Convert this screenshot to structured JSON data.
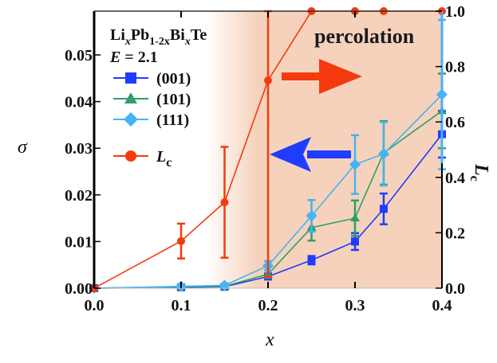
{
  "chart_data": {
    "type": "line",
    "title": "",
    "xlabel": "x",
    "ylabel_left": "σ",
    "ylabel_right": "L_c",
    "xlim": [
      0.0,
      0.4
    ],
    "ylim_left": [
      0.0,
      0.059
    ],
    "ylim_right": [
      0.0,
      1.0
    ],
    "x_ticks": [
      "0.0",
      "0.1",
      "0.2",
      "0.3",
      "0.4"
    ],
    "x_tick_values": [
      0.0,
      0.1,
      0.2,
      0.3,
      0.4
    ],
    "y_left_ticks": [
      "0.00",
      "0.01",
      "0.02",
      "0.03",
      "0.04",
      "0.05"
    ],
    "y_left_tick_values": [
      0.0,
      0.01,
      0.02,
      0.03,
      0.04,
      0.05
    ],
    "y_right_ticks": [
      "0.0",
      "0.2",
      "0.4",
      "0.6",
      "0.8",
      "1.0"
    ],
    "y_right_tick_values": [
      0.0,
      0.2,
      0.4,
      0.6,
      0.8,
      1.0
    ],
    "shaded_region": {
      "x_start": 0.16,
      "x_end": 0.4,
      "color": "#f6d2bc",
      "label": "percolation"
    },
    "legend": {
      "placement": "top-left",
      "title_line1_parts": [
        "Li",
        "x",
        "Pb",
        "1-2x",
        "Bi",
        "x",
        "Te"
      ],
      "title_line2_var": "E",
      "title_line2_value": " = 2.1"
    },
    "series": [
      {
        "name": "(001)",
        "axis": "left",
        "color": "#1f3cff",
        "marker": "square",
        "x": [
          0.0,
          0.1,
          0.15,
          0.2,
          0.25,
          0.3,
          0.333,
          0.4
        ],
        "y": [
          0.0,
          0.0002,
          0.0003,
          0.0025,
          0.006,
          0.01,
          0.017,
          0.033
        ],
        "err": [
          0,
          0,
          0,
          0.0006,
          0.0009,
          0.0018,
          0.0033,
          0.005
        ]
      },
      {
        "name": "(101)",
        "axis": "left",
        "color": "#2e9e6a",
        "marker": "triangle",
        "x": [
          0.0,
          0.1,
          0.15,
          0.2,
          0.25,
          0.3,
          0.333,
          0.4
        ],
        "y": [
          0.0,
          0.0003,
          0.0004,
          0.003,
          0.013,
          0.015,
          0.029,
          0.038
        ],
        "err": [
          0,
          0,
          0,
          0.0008,
          0.0028,
          0.0038,
          0.0068,
          0.008
        ]
      },
      {
        "name": "(111)",
        "axis": "left",
        "color": "#45b3f5",
        "marker": "diamond",
        "x": [
          0.0,
          0.1,
          0.15,
          0.2,
          0.25,
          0.3,
          0.333,
          0.4
        ],
        "y": [
          0.0,
          0.0004,
          0.0006,
          0.0048,
          0.0155,
          0.0265,
          0.0288,
          0.0415
        ],
        "err": [
          0,
          0,
          0,
          0.001,
          0.0034,
          0.0063,
          0.0068,
          0.016
        ]
      },
      {
        "name": "L_c",
        "axis": "right",
        "color": "#f43a0e",
        "marker": "circle",
        "x": [
          0.0,
          0.1,
          0.15,
          0.2,
          0.25,
          0.3,
          0.333,
          0.4
        ],
        "y": [
          0.0,
          0.17,
          0.31,
          0.75,
          1.0,
          1.0,
          1.0,
          1.0
        ],
        "err": [
          0,
          0.063,
          0.2,
          0.71,
          0,
          0,
          0,
          0
        ]
      }
    ],
    "annotations": [
      {
        "text": "percolation"
      },
      {
        "type": "arrow",
        "direction": "right",
        "color": "#f43a0e",
        "meaning": "L_c uses right axis"
      },
      {
        "type": "arrow",
        "direction": "left",
        "color": "#1f3cff",
        "meaning": "σ uses left axis"
      }
    ]
  }
}
